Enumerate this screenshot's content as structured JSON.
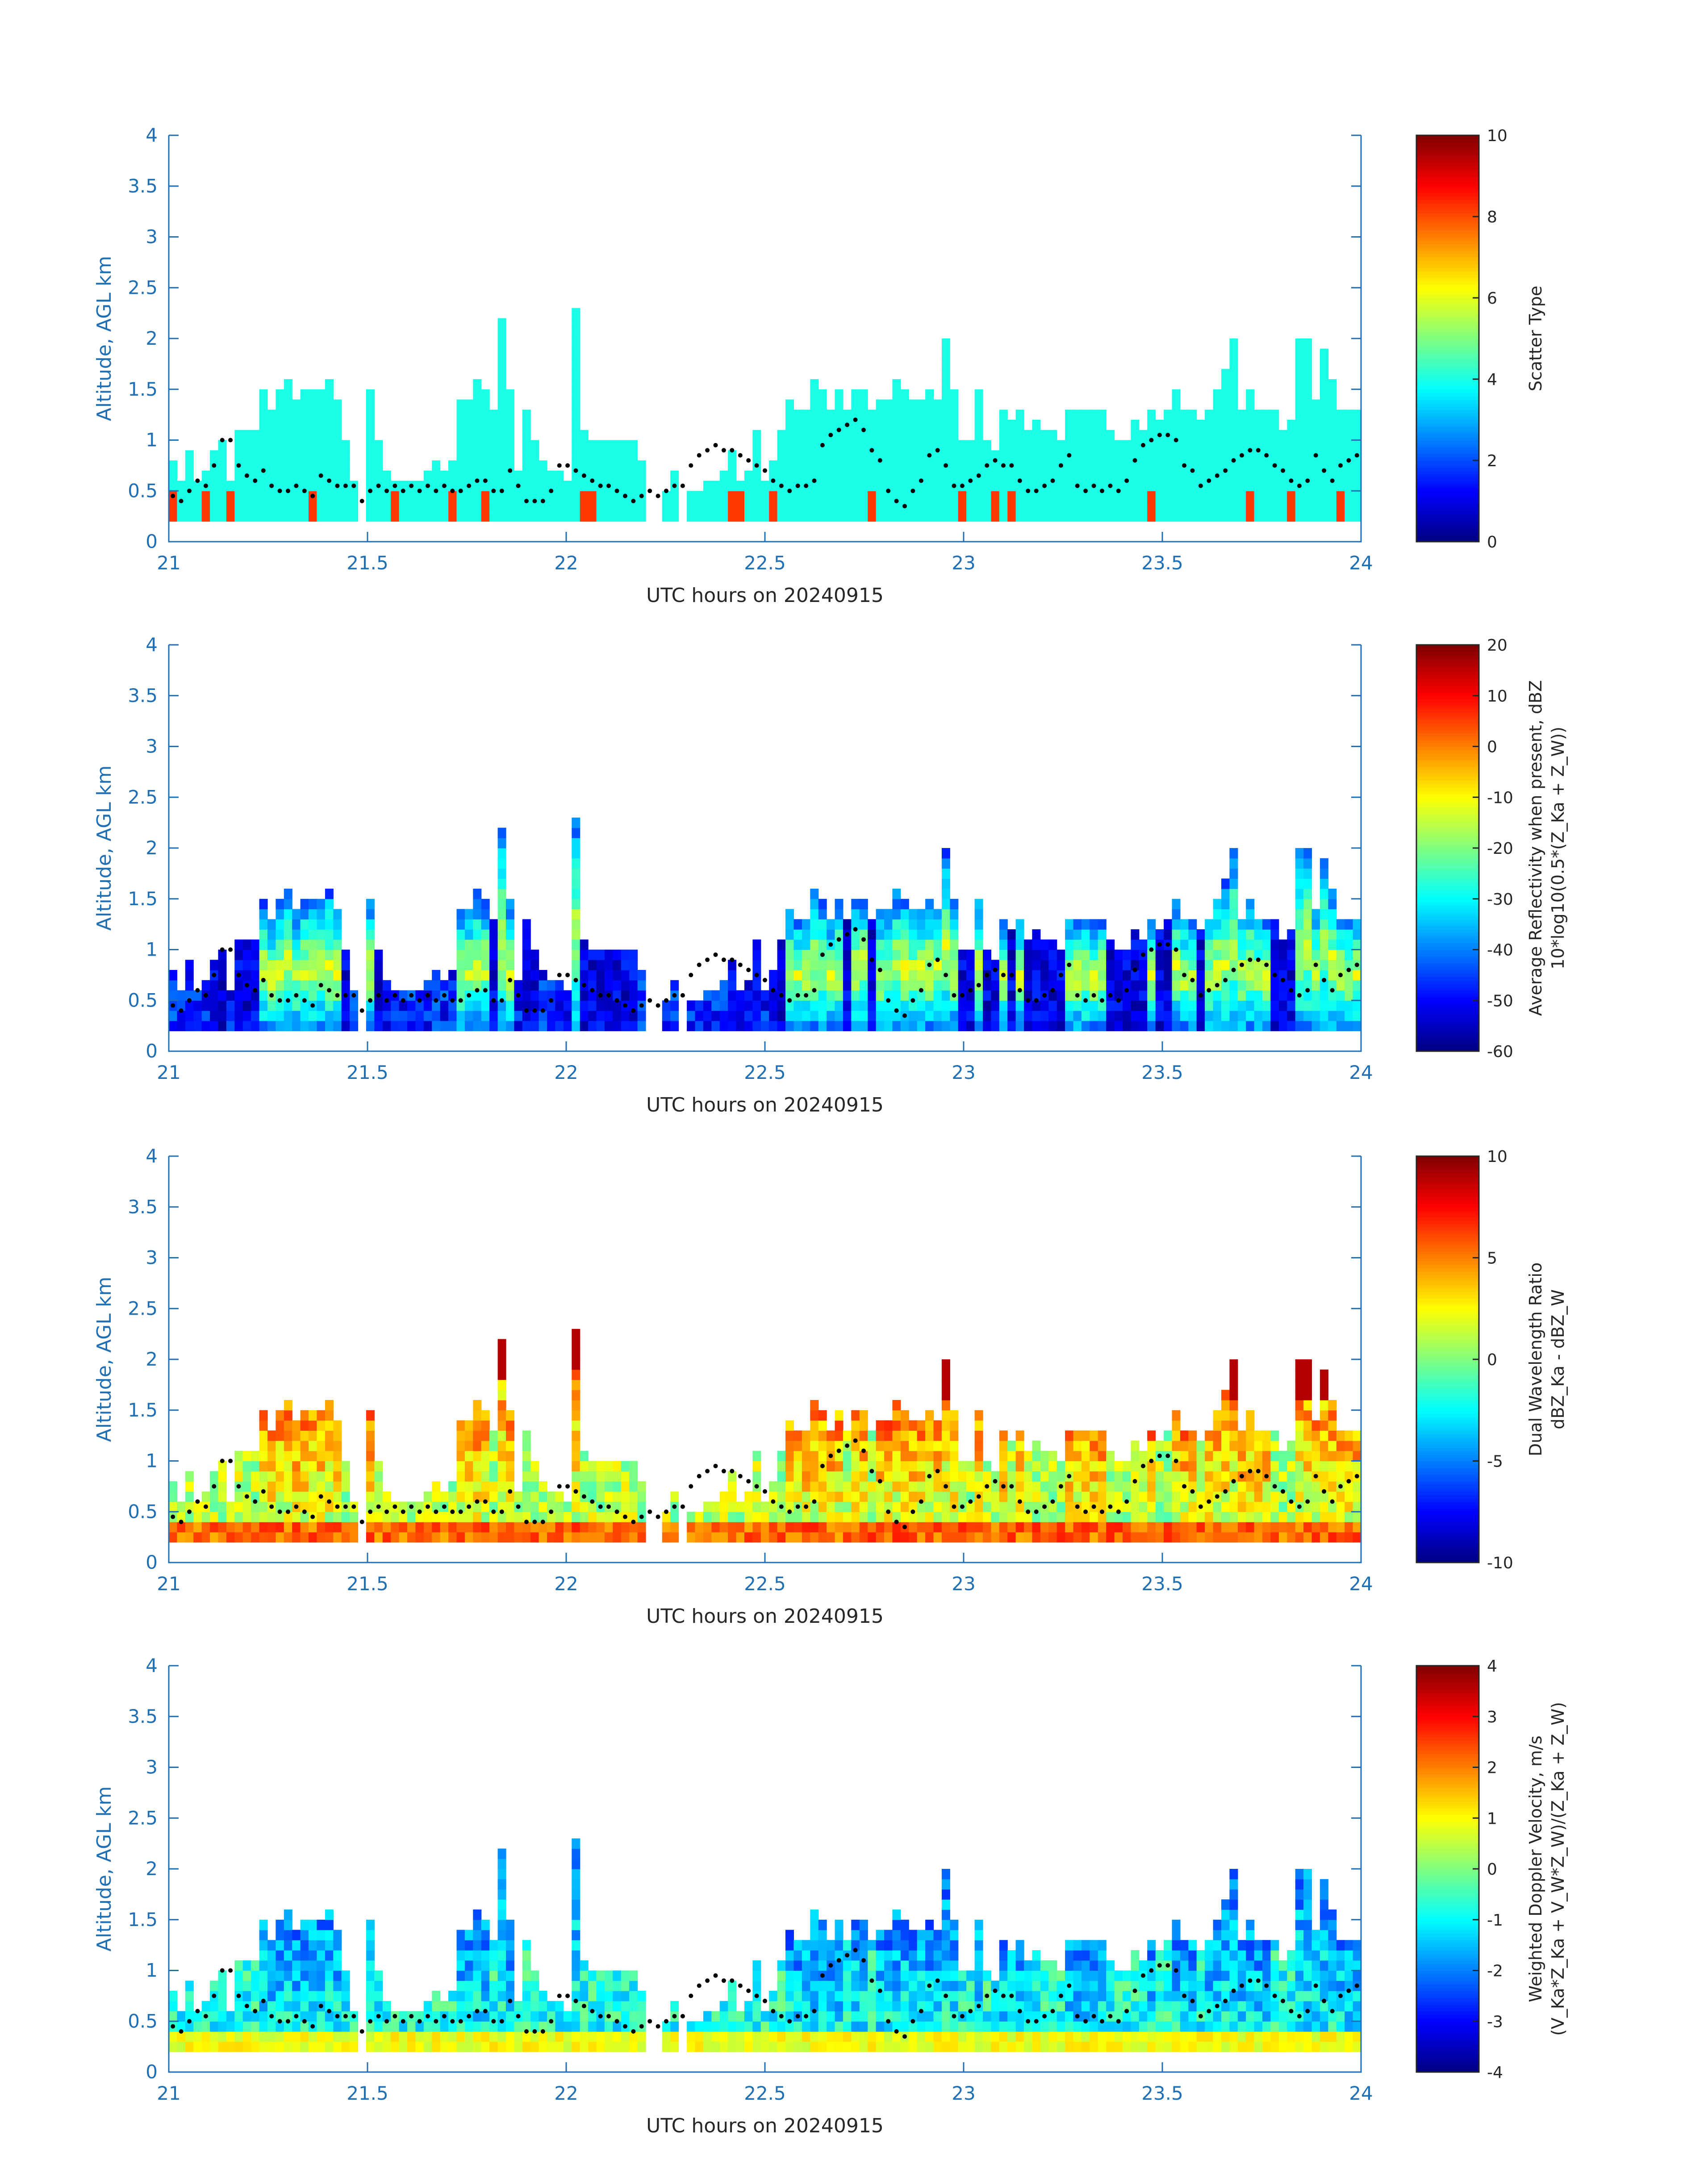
{
  "colors": {
    "axis": "#1f6fb2",
    "text": "#262626",
    "dot": "#000000"
  },
  "colormap": "jet",
  "chart_data": [
    {
      "type": "heatmap",
      "ylabel": "Altitude, AGL km",
      "xlabel": "UTC hours on 20240915",
      "xlim": [
        21,
        24
      ],
      "ylim": [
        0,
        4
      ],
      "xticks": [
        "21",
        "21.5",
        "22",
        "22.5",
        "23",
        "23.5",
        "24"
      ],
      "yticks": [
        "0",
        "0.5",
        "1",
        "1.5",
        "2",
        "2.5",
        "3",
        "3.5",
        "4"
      ],
      "colorbar": {
        "label": "Scatter Type",
        "clim": [
          0,
          10
        ],
        "ticks": [
          "0",
          "2",
          "4",
          "6",
          "8",
          "10"
        ]
      },
      "field": "scatter"
    },
    {
      "type": "heatmap",
      "ylabel": "Altitude, AGL km",
      "xlabel": "UTC hours on 20240915",
      "xlim": [
        21,
        24
      ],
      "ylim": [
        0,
        4
      ],
      "xticks": [
        "21",
        "21.5",
        "22",
        "22.5",
        "23",
        "23.5",
        "24"
      ],
      "yticks": [
        "0",
        "0.5",
        "1",
        "1.5",
        "2",
        "2.5",
        "3",
        "3.5",
        "4"
      ],
      "colorbar": {
        "label": "Average Reflectivity when present, dBZ",
        "label2": "10*log10(0.5*(Z_Ka + Z_W))",
        "clim": [
          -60,
          20
        ],
        "ticks": [
          "-60",
          "-50",
          "-40",
          "-30",
          "-20",
          "-10",
          "0",
          "10",
          "20"
        ]
      },
      "field": "refl"
    },
    {
      "type": "heatmap",
      "ylabel": "Altitude, AGL km",
      "xlabel": "UTC hours on 20240915",
      "xlim": [
        21,
        24
      ],
      "ylim": [
        0,
        4
      ],
      "xticks": [
        "21",
        "21.5",
        "22",
        "22.5",
        "23",
        "23.5",
        "24"
      ],
      "yticks": [
        "0",
        "0.5",
        "1",
        "1.5",
        "2",
        "2.5",
        "3",
        "3.5",
        "4"
      ],
      "colorbar": {
        "label": "Dual Wavelength Ratio",
        "label2": "dBZ_Ka - dBZ_W",
        "clim": [
          -10,
          10
        ],
        "ticks": [
          "-10",
          "-5",
          "0",
          "5",
          "10"
        ]
      },
      "field": "dwr"
    },
    {
      "type": "heatmap",
      "ylabel": "Altitude, AGL km",
      "xlabel": "UTC hours on 20240915",
      "xlim": [
        21,
        24
      ],
      "ylim": [
        0,
        4
      ],
      "xticks": [
        "21",
        "21.5",
        "22",
        "22.5",
        "23",
        "23.5",
        "24"
      ],
      "yticks": [
        "0",
        "0.5",
        "1",
        "1.5",
        "2",
        "2.5",
        "3",
        "3.5",
        "4"
      ],
      "colorbar": {
        "label": "Weighted Doppler Velocity, m/s",
        "label2": "(V_Ka*Z_Ka + V_W*Z_W)/(Z_Ka + Z_W)",
        "clim": [
          -4,
          4
        ],
        "ticks": [
          "-4",
          "-3",
          "-2",
          "-1",
          "0",
          "1",
          "2",
          "3",
          "4"
        ]
      },
      "field": "vel"
    }
  ],
  "cloud": {
    "bin_hours": 0.0167,
    "gate_km": 0.1,
    "base_km": 0.2,
    "top_km": [
      0.75,
      0.55,
      0.85,
      0.55,
      0.65,
      0.9,
      1.0,
      0.55,
      1.05,
      1.05,
      1.05,
      1.45,
      1.3,
      1.45,
      1.55,
      1.35,
      1.45,
      1.5,
      1.5,
      1.55,
      1.35,
      1.0,
      0.6,
      0.0,
      1.45,
      1.0,
      0.7,
      0.6,
      0.6,
      0.6,
      0.6,
      0.7,
      0.75,
      0.7,
      0.75,
      1.4,
      1.4,
      1.55,
      1.45,
      1.25,
      2.15,
      1.45,
      0.7,
      1.25,
      1.0,
      0.8,
      0.7,
      0.7,
      0.6,
      2.25,
      1.05,
      1.0,
      1.0,
      1.0,
      1.0,
      1.0,
      1.0,
      0.8,
      0.0,
      0.0,
      0.5,
      0.7,
      0.0,
      0.5,
      0.5,
      0.6,
      0.55,
      0.7,
      0.9,
      0.6,
      0.7,
      1.05,
      0.6,
      0.8,
      1.1,
      1.35,
      1.3,
      1.3,
      1.55,
      1.5,
      1.3,
      1.45,
      1.25,
      1.5,
      1.5,
      1.25,
      1.35,
      1.35,
      1.55,
      1.5,
      1.35,
      1.4,
      1.45,
      1.4,
      1.95,
      1.45,
      1.0,
      1.0,
      1.5,
      1.0,
      0.9,
      1.3,
      1.15,
      1.3,
      1.1,
      1.15,
      1.1,
      1.1,
      1.0,
      1.3,
      1.3,
      1.3,
      1.3,
      1.3,
      1.1,
      0.95,
      1.0,
      1.2,
      1.1,
      1.3,
      1.2,
      1.25,
      1.5,
      1.3,
      1.3,
      1.2,
      1.3,
      1.5,
      1.65,
      1.95,
      1.3,
      1.45,
      1.3,
      1.3,
      1.25,
      1.05,
      1.2,
      1.95,
      1.95,
      1.35,
      1.9,
      1.6,
      1.3,
      1.3,
      1.3
    ]
  },
  "echo_top_dots": [
    0.45,
    0.4,
    0.5,
    0.6,
    0.55,
    0.75,
    1.0,
    1.0,
    0.75,
    0.65,
    0.6,
    0.7,
    0.55,
    0.5,
    0.5,
    0.55,
    0.5,
    0.45,
    0.65,
    0.6,
    0.55,
    0.55,
    0.55,
    0.4,
    0.5,
    0.55,
    0.5,
    0.55,
    0.5,
    0.55,
    0.5,
    0.55,
    0.5,
    0.55,
    0.5,
    0.5,
    0.55,
    0.6,
    0.6,
    0.5,
    0.5,
    0.7,
    0.55,
    0.4,
    0.4,
    0.4,
    0.5,
    0.75,
    0.75,
    0.7,
    0.65,
    0.6,
    0.55,
    0.55,
    0.5,
    0.45,
    0.4,
    0.45,
    0.5,
    0.45,
    0.5,
    0.55,
    0.55,
    0.75,
    0.85,
    0.9,
    0.95,
    0.9,
    0.9,
    0.85,
    0.8,
    0.75,
    0.7,
    0.6,
    0.55,
    0.5,
    0.55,
    0.55,
    0.6,
    0.95,
    1.05,
    1.1,
    1.15,
    1.2,
    1.1,
    0.9,
    0.8,
    0.5,
    0.4,
    0.35,
    0.5,
    0.6,
    0.85,
    0.9,
    0.75,
    0.55,
    0.55,
    0.6,
    0.65,
    0.75,
    0.8,
    0.75,
    0.75,
    0.6,
    0.5,
    0.5,
    0.55,
    0.6,
    0.75,
    0.85,
    0.55,
    0.5,
    0.55,
    0.5,
    0.55,
    0.5,
    0.6,
    0.8,
    0.95,
    1.0,
    1.05,
    1.05,
    1.0,
    0.75,
    0.7,
    0.55,
    0.6,
    0.65,
    0.7,
    0.8,
    0.85,
    0.9,
    0.9,
    0.85,
    0.75,
    0.7,
    0.6,
    0.55,
    0.6,
    0.85,
    0.7,
    0.6,
    0.75,
    0.8,
    0.85
  ]
}
